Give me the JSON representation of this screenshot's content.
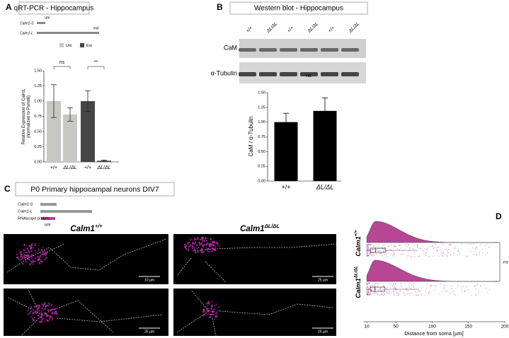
{
  "chart_data": [
    {
      "type": "bar",
      "panel": "A",
      "title": "qRT-PCR - Hippocampus",
      "diagram_labels": [
        "Calm1-S",
        "Calm1-L",
        "uni",
        "ext"
      ],
      "ylabel": [
        "Relative Expression of Calm1",
        "(normalized to Psmd6)"
      ],
      "categories": [
        "+/+",
        "ΔL/ΔL",
        "+/+",
        "ΔL/ΔL"
      ],
      "series": [
        {
          "name": "Uni",
          "color": "#c8c8c3",
          "values": [
            1.0,
            0.78,
            null,
            null
          ],
          "errors": [
            0.27,
            0.11,
            null,
            null
          ]
        },
        {
          "name": "Ext",
          "color": "#464646",
          "values": [
            null,
            null,
            1.0,
            0.02
          ],
          "errors": [
            null,
            null,
            0.17,
            0.01
          ]
        }
      ],
      "annotations": [
        "ns",
        "**"
      ],
      "ylim": [
        0,
        1.5
      ],
      "yticks": [
        {
          "value": 0,
          "label": "0.00"
        },
        {
          "value": 0.25,
          "label": "0.25"
        },
        {
          "value": 0.5,
          "label": "0.50"
        },
        {
          "value": 0.75,
          "label": "0.75"
        },
        {
          "value": 1,
          "label": "1.00"
        },
        {
          "value": 1.25,
          "label": "1.25"
        },
        {
          "value": 1.5,
          "label": "1.50"
        }
      ]
    },
    {
      "type": "bar",
      "panel": "B",
      "title": "Western blot - Hippocampus",
      "lane_labels": [
        "+/+",
        "ΔL/ΔL",
        "+/+",
        "ΔL/ΔL",
        "+/+",
        "ΔL/ΔL"
      ],
      "blot_labels": [
        "CaM",
        "α-Tubulin"
      ],
      "ylabel": [
        "CaM / α-Tubulin"
      ],
      "categories": [
        "+/+",
        "ΔL/ΔL"
      ],
      "series": [
        {
          "color": "#000000",
          "values": [
            1.0,
            1.19
          ],
          "errors": [
            0.15,
            0.22
          ]
        }
      ],
      "annotations": [
        "ns"
      ],
      "ylim": [
        0,
        1.5
      ],
      "yticks": [
        {
          "value": 0,
          "label": "0.00"
        },
        {
          "value": 0.25,
          "label": "0.25"
        },
        {
          "value": 0.5,
          "label": "0.50"
        },
        {
          "value": 0.75,
          "label": "0.75"
        },
        {
          "value": 1,
          "label": "1.00"
        },
        {
          "value": 1.25,
          "label": "1.25"
        },
        {
          "value": 1.5,
          "label": "1.50"
        }
      ]
    },
    {
      "type": "box",
      "panel": "D",
      "categories": [
        "Calm1",
        "Calm1"
      ],
      "category_superscripts": [
        "+/+",
        "ΔL/ΔL"
      ],
      "color": "#b0338a",
      "boxes": [
        {
          "min": 10,
          "q1": 15,
          "median": 22,
          "q3": 36,
          "max": 80
        },
        {
          "min": 10,
          "q1": 15,
          "median": 21,
          "q3": 35,
          "max": 82
        }
      ],
      "annotations": [
        "ns"
      ],
      "xlabel": "Distance from soma [µm]",
      "xlim": [
        5,
        200
      ],
      "xticks": [
        10,
        50,
        100,
        150,
        200
      ]
    }
  ],
  "panel_c": {
    "panel": "C",
    "title": "P0 Primary hippocampal neurons DIV7",
    "diagram_labels": [
      "Calm1-S",
      "Calm1-L",
      "RNAscope probes",
      "uni"
    ],
    "column_gene": "Calm1",
    "column_genotypes": [
      "+/+",
      "ΔL/ΔL"
    ],
    "scale_bars": [
      "10 µm",
      "25 µm",
      "25 µm",
      "25 µm"
    ]
  }
}
